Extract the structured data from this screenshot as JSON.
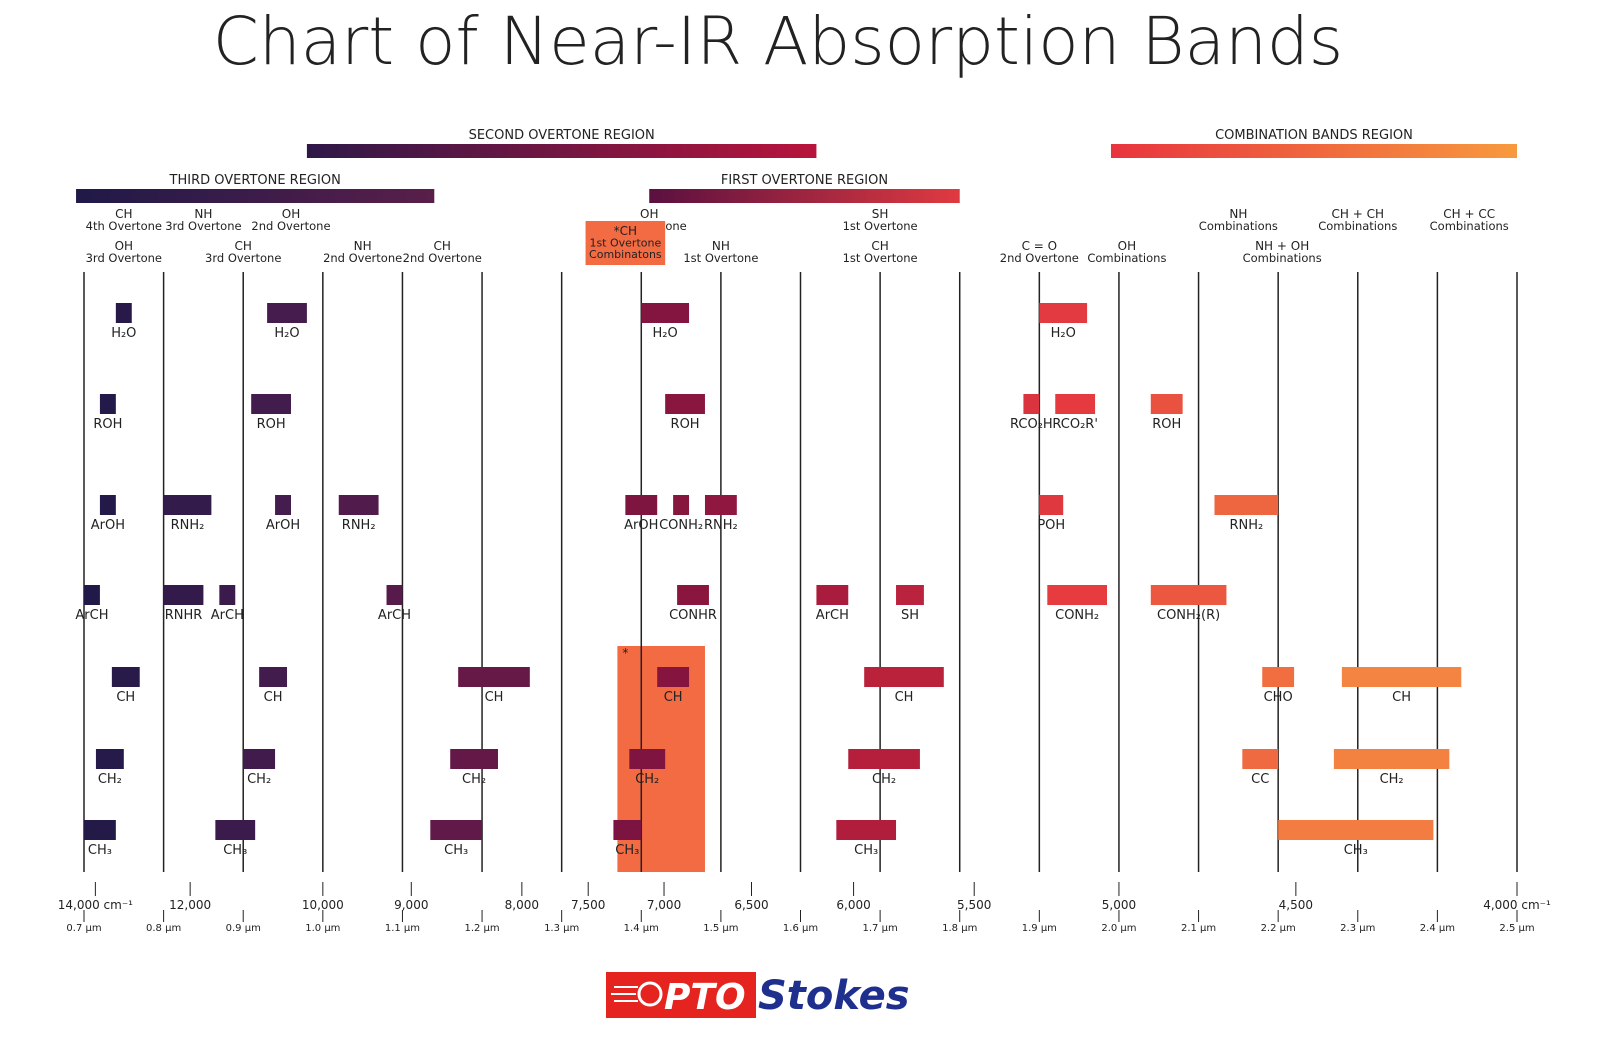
{
  "chart_data": {
    "type": "bar",
    "title": "Chart of Near-IR Absorption Bands",
    "xlim": [
      14000,
      4000
    ],
    "wavenumber_ticks": [
      {
        "v": 14000,
        "label": "14,000 cm⁻¹"
      },
      {
        "v": 12000,
        "label": "12,000"
      },
      {
        "v": 10000,
        "label": "10,000"
      },
      {
        "v": 9000,
        "label": "9,000"
      },
      {
        "v": 8000,
        "label": "8,000"
      },
      {
        "v": 7500,
        "label": "7,500"
      },
      {
        "v": 7000,
        "label": "7,000"
      },
      {
        "v": 6500,
        "label": "6,500"
      },
      {
        "v": 6000,
        "label": "6,000"
      },
      {
        "v": 5500,
        "label": "5,500"
      },
      {
        "v": 5000,
        "label": "5,000"
      },
      {
        "v": 4500,
        "label": "4,500"
      },
      {
        "v": 4000,
        "label": "4,000 cm⁻¹"
      }
    ],
    "wavelength_ticks": [
      {
        "v": 0.7,
        "label": "0.7 μm"
      },
      {
        "v": 0.8,
        "label": "0.8 μm"
      },
      {
        "v": 0.9,
        "label": "0.9 μm"
      },
      {
        "v": 1.0,
        "label": "1.0 μm"
      },
      {
        "v": 1.1,
        "label": "1.1 μm"
      },
      {
        "v": 1.2,
        "label": "1.2 μm"
      },
      {
        "v": 1.3,
        "label": "1.3 μm"
      },
      {
        "v": 1.4,
        "label": "1.4 μm"
      },
      {
        "v": 1.5,
        "label": "1.5 μm"
      },
      {
        "v": 1.6,
        "label": "1.6 μm"
      },
      {
        "v": 1.7,
        "label": "1.7 μm"
      },
      {
        "v": 1.8,
        "label": "1.8 μm"
      },
      {
        "v": 1.9,
        "label": "1.9 μm"
      },
      {
        "v": 2.0,
        "label": "2.0 μm"
      },
      {
        "v": 2.1,
        "label": "2.1 μm"
      },
      {
        "v": 2.2,
        "label": "2.2 μm"
      },
      {
        "v": 2.3,
        "label": "2.3 μm"
      },
      {
        "v": 2.4,
        "label": "2.4 μm"
      },
      {
        "v": 2.5,
        "label": "2.5 μm"
      }
    ],
    "regions": [
      {
        "name": "THIRD OVERTONE REGION",
        "from": 0.69,
        "to": 1.14,
        "row": 2,
        "colors": [
          "#1f1a48",
          "#5a1e4a"
        ]
      },
      {
        "name": "SECOND OVERTONE REGION",
        "from": 0.98,
        "to": 1.62,
        "row": 1,
        "colors": [
          "#2e1848",
          "#b8143c"
        ]
      },
      {
        "name": "FIRST OVERTONE REGION",
        "from": 1.41,
        "to": 1.8,
        "row": 2,
        "colors": [
          "#5a1040",
          "#e03a40"
        ]
      },
      {
        "name": "COMBINATION BANDS REGION",
        "from": 1.99,
        "to": 2.5,
        "row": 1,
        "colors": [
          "#e8343e",
          "#f79a3e"
        ]
      }
    ],
    "highlight": {
      "label": [
        "*CH",
        "1st Overtone",
        "Combinatons"
      ],
      "from": 1.33,
      "to": 1.43,
      "band_from": 1.37,
      "band_to": 1.48,
      "color": "#f26b43"
    },
    "headers": [
      {
        "x": 0.75,
        "lines": [
          "CH",
          "4th Overtone"
        ],
        "row": 1
      },
      {
        "x": 0.85,
        "lines": [
          "NH",
          "3rd Overtone"
        ],
        "row": 1
      },
      {
        "x": 0.96,
        "lines": [
          "OH",
          "2nd Overtone"
        ],
        "row": 1
      },
      {
        "x": 0.75,
        "lines": [
          "OH",
          "3rd Overtone"
        ],
        "row": 2
      },
      {
        "x": 0.9,
        "lines": [
          "CH",
          "3rd Overtone"
        ],
        "row": 2
      },
      {
        "x": 1.05,
        "lines": [
          "NH",
          "2nd Overtone"
        ],
        "row": 2
      },
      {
        "x": 1.15,
        "lines": [
          "CH",
          "2nd Overtone"
        ],
        "row": 2
      },
      {
        "x": 1.41,
        "lines": [
          "OH",
          "1st Overtone"
        ],
        "row": 1
      },
      {
        "x": 1.7,
        "lines": [
          "SH",
          "1st Overtone"
        ],
        "row": 1
      },
      {
        "x": 1.5,
        "lines": [
          "NH",
          "1st Overtone"
        ],
        "row": 2
      },
      {
        "x": 1.7,
        "lines": [
          "CH",
          "1st Overtone"
        ],
        "row": 2
      },
      {
        "x": 1.9,
        "lines": [
          "C = O",
          "2nd Overtone"
        ],
        "row": 2
      },
      {
        "x": 2.01,
        "lines": [
          "OH",
          "Combinations"
        ],
        "row": 2
      },
      {
        "x": 2.15,
        "lines": [
          "NH",
          "Combinations"
        ],
        "row": 1
      },
      {
        "x": 2.3,
        "lines": [
          "CH + CH",
          "Combinations"
        ],
        "row": 1
      },
      {
        "x": 2.44,
        "lines": [
          "CH + CC",
          "Combinations"
        ],
        "row": 1
      },
      {
        "x": 2.205,
        "lines": [
          "NH + OH",
          "Combinations"
        ],
        "row": 2
      }
    ],
    "bands": [
      {
        "label": "H₂O",
        "from": 0.74,
        "to": 0.76,
        "row": 0
      },
      {
        "label": "H₂O",
        "from": 0.93,
        "to": 0.98,
        "row": 0
      },
      {
        "label": "H₂O",
        "from": 1.4,
        "to": 1.46,
        "row": 0
      },
      {
        "label": "H₂O",
        "from": 1.9,
        "to": 1.96,
        "row": 0
      },
      {
        "label": "ROH",
        "from": 0.72,
        "to": 0.74,
        "row": 1
      },
      {
        "label": "ROH",
        "from": 0.91,
        "to": 0.96,
        "row": 1
      },
      {
        "label": "ROH",
        "from": 1.43,
        "to": 1.48,
        "row": 1
      },
      {
        "label": "RCO₂H",
        "from": 1.88,
        "to": 1.9,
        "row": 1
      },
      {
        "label": "RCO₂R'",
        "from": 1.92,
        "to": 1.97,
        "row": 1
      },
      {
        "label": "ROH",
        "from": 2.04,
        "to": 2.08,
        "row": 1
      },
      {
        "label": "ArOH",
        "from": 0.72,
        "to": 0.74,
        "row": 2
      },
      {
        "label": "RNH₂",
        "from": 0.8,
        "to": 0.86,
        "row": 2
      },
      {
        "label": "ArOH",
        "from": 0.94,
        "to": 0.96,
        "row": 2
      },
      {
        "label": "RNH₂",
        "from": 1.02,
        "to": 1.07,
        "row": 2
      },
      {
        "label": "ArOH",
        "from": 1.38,
        "to": 1.42,
        "row": 2
      },
      {
        "label": "CONH₂",
        "from": 1.44,
        "to": 1.46,
        "row": 2
      },
      {
        "label": "RNH₂",
        "from": 1.48,
        "to": 1.52,
        "row": 2
      },
      {
        "label": "POH",
        "from": 1.9,
        "to": 1.93,
        "row": 2
      },
      {
        "label": "RNH₂",
        "from": 2.12,
        "to": 2.2,
        "row": 2
      },
      {
        "label": "ArCH",
        "from": 0.7,
        "to": 0.72,
        "row": 3
      },
      {
        "label": "RNHR",
        "from": 0.8,
        "to": 0.85,
        "row": 3
      },
      {
        "label": "ArCH",
        "from": 0.87,
        "to": 0.89,
        "row": 3
      },
      {
        "label": "ArCH",
        "from": 1.08,
        "to": 1.1,
        "row": 3
      },
      {
        "label": "CONHR",
        "from": 1.445,
        "to": 1.485,
        "row": 3
      },
      {
        "label": "ArCH",
        "from": 1.62,
        "to": 1.66,
        "row": 3
      },
      {
        "label": "SH",
        "from": 1.72,
        "to": 1.755,
        "row": 3
      },
      {
        "label": "CONH₂",
        "from": 1.91,
        "to": 1.985,
        "row": 3
      },
      {
        "label": "CONH₂(R)",
        "from": 2.04,
        "to": 2.135,
        "row": 3
      },
      {
        "label": "CH",
        "from": 0.735,
        "to": 0.77,
        "row": 4
      },
      {
        "label": "CH",
        "from": 0.92,
        "to": 0.955,
        "row": 4
      },
      {
        "label": "CH",
        "from": 1.17,
        "to": 1.26,
        "row": 4
      },
      {
        "label": "CH",
        "from": 1.42,
        "to": 1.46,
        "row": 4
      },
      {
        "label": "CH",
        "from": 1.68,
        "to": 1.78,
        "row": 4
      },
      {
        "label": "CHO",
        "from": 2.18,
        "to": 2.22,
        "row": 4
      },
      {
        "label": "CH",
        "from": 2.28,
        "to": 2.43,
        "row": 4
      },
      {
        "label": "CH₂",
        "from": 0.715,
        "to": 0.75,
        "row": 5
      },
      {
        "label": "CH₂",
        "from": 0.9,
        "to": 0.94,
        "row": 5
      },
      {
        "label": "CH₂",
        "from": 1.16,
        "to": 1.22,
        "row": 5
      },
      {
        "label": "CH₂",
        "from": 1.385,
        "to": 1.43,
        "row": 5
      },
      {
        "label": "CH₂",
        "from": 1.66,
        "to": 1.75,
        "row": 5
      },
      {
        "label": "CC",
        "from": 2.155,
        "to": 2.2,
        "row": 5
      },
      {
        "label": "CH₂",
        "from": 2.27,
        "to": 2.415,
        "row": 5
      },
      {
        "label": "CH₃",
        "from": 0.7,
        "to": 0.74,
        "row": 6
      },
      {
        "label": "CH₃",
        "from": 0.865,
        "to": 0.915,
        "row": 6
      },
      {
        "label": "CH₃",
        "from": 1.135,
        "to": 1.2,
        "row": 6
      },
      {
        "label": "CH₃",
        "from": 1.365,
        "to": 1.4,
        "row": 6
      },
      {
        "label": "CH₃",
        "from": 1.645,
        "to": 1.72,
        "row": 6
      },
      {
        "label": "CH₃",
        "from": 2.2,
        "to": 2.395,
        "row": 6
      }
    ]
  },
  "logo": {
    "prefix": "PTO",
    "suffix": "Stokes",
    "colors": {
      "red": "#e5241f",
      "blue": "#1e2f8e"
    }
  }
}
